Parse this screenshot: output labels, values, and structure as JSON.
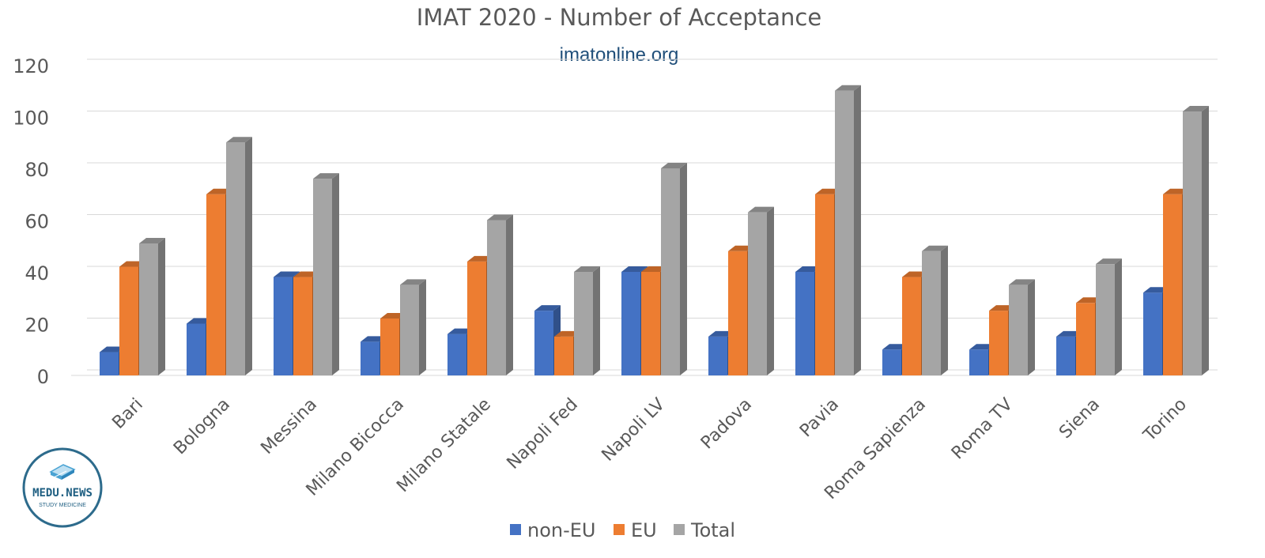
{
  "chart_data": {
    "type": "bar",
    "title": "IMAT 2020 - Number of Acceptance",
    "subtitle": "imatonline.org",
    "xlabel": "",
    "ylabel": "",
    "ylim": [
      0,
      120
    ],
    "yticks": [
      0,
      20,
      40,
      60,
      80,
      100,
      120
    ],
    "grid": true,
    "legend_position": "bottom",
    "categories": [
      "Bari",
      "Bologna",
      "Messina",
      "Milano Bicocca",
      "Milano Statale",
      "Napoli Fed",
      "Napoli LV",
      "Padova",
      "Pavia",
      "Roma Sapienza",
      "Roma TV",
      "Siena",
      "Torino"
    ],
    "series": [
      {
        "name": "non-EU",
        "color": "#4472c4",
        "values": [
          9,
          20,
          38,
          13,
          16,
          25,
          40,
          15,
          40,
          10,
          10,
          15,
          32
        ]
      },
      {
        "name": "EU",
        "color": "#ed7d31",
        "values": [
          42,
          70,
          38,
          22,
          44,
          15,
          40,
          48,
          70,
          38,
          25,
          28,
          70
        ]
      },
      {
        "name": "Total",
        "color": "#a5a5a5",
        "values": [
          51,
          90,
          76,
          35,
          60,
          40,
          80,
          63,
          110,
          48,
          35,
          43,
          102
        ]
      }
    ]
  },
  "logo": {
    "name": "MEDU.NEWS",
    "tagline": "STUDY MEDICINE",
    "icon": "book-stack-icon"
  }
}
